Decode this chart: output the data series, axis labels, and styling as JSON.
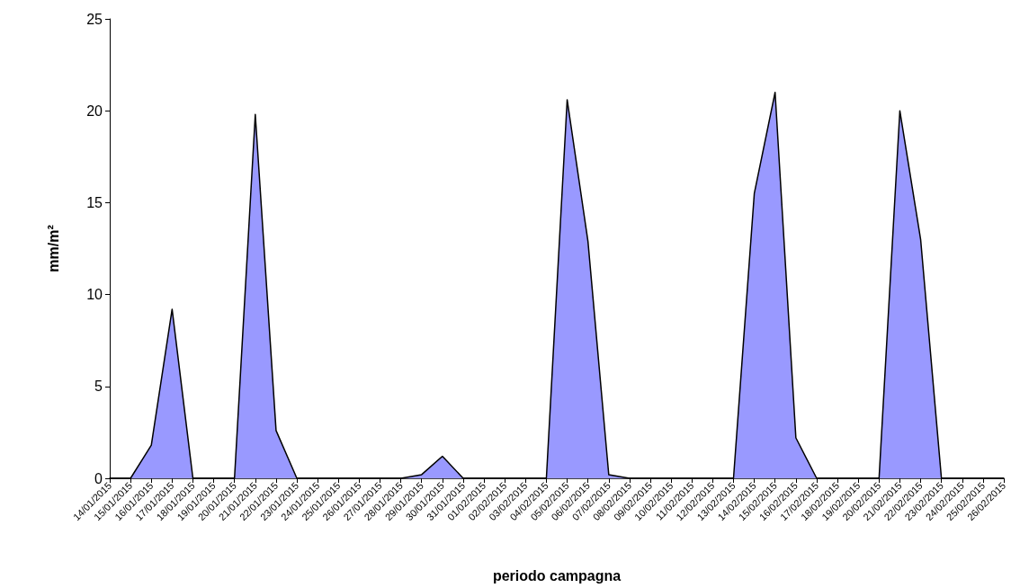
{
  "chart_data": {
    "type": "area",
    "xlabel": "periodo campagna",
    "ylabel": "mm/m²",
    "categories": [
      "14/01/2015",
      "15/01/2015",
      "16/01/2015",
      "17/01/2015",
      "18/01/2015",
      "19/01/2015",
      "20/01/2015",
      "21/01/2015",
      "22/01/2015",
      "23/01/2015",
      "24/01/2015",
      "25/01/2015",
      "26/01/2015",
      "27/01/2015",
      "28/01/2015",
      "29/01/2015",
      "30/01/2015",
      "31/01/2015",
      "01/02/2015",
      "02/02/2015",
      "03/02/2015",
      "04/02/2015",
      "05/02/2015",
      "06/02/2015",
      "07/02/2015",
      "08/02/2015",
      "09/02/2015",
      "10/02/2015",
      "11/02/2015",
      "12/02/2015",
      "13/02/2015",
      "14/02/2015",
      "15/02/2015",
      "16/02/2015",
      "17/02/2015",
      "18/02/2015",
      "19/02/2015",
      "20/02/2015",
      "21/02/2015",
      "22/02/2015",
      "23/02/2015",
      "24/02/2015",
      "25/02/2015",
      "26/02/2015"
    ],
    "series": [
      {
        "color": "#9999ff",
        "values": [
          0,
          0,
          1.8,
          9.2,
          0,
          0,
          0,
          19.8,
          2.6,
          0,
          0,
          0,
          0,
          0,
          0,
          0.2,
          1.2,
          0,
          0,
          0,
          0,
          0,
          20.6,
          12.9,
          0.2,
          0,
          0,
          0,
          0,
          0,
          0,
          15.5,
          21.0,
          2.2,
          0,
          0,
          0,
          0,
          20.0,
          13.0,
          0,
          0,
          0,
          0
        ]
      }
    ],
    "ylim": [
      0,
      25
    ],
    "yticks": [
      0,
      5,
      10,
      15,
      20,
      25
    ],
    "grid": false,
    "marker": "none",
    "line_style": "solid"
  }
}
